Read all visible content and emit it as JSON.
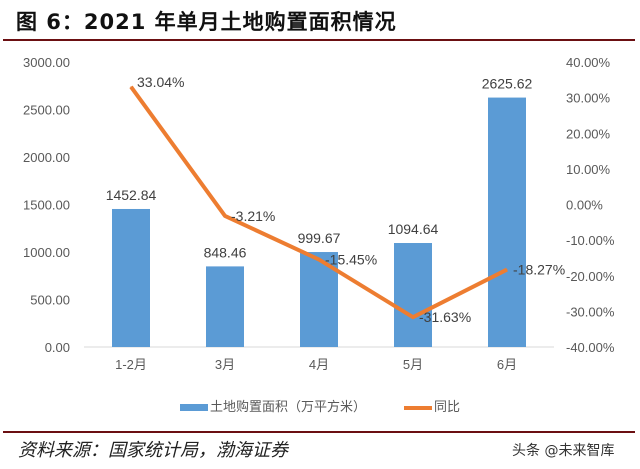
{
  "title": "图 6：2021 年单月土地购置面积情况",
  "source": "资料来源：国家统计局，渤海证券",
  "watermark": "头条 @未来智库",
  "chart_data": {
    "type": "bar+line",
    "categories": [
      "1-2月",
      "3月",
      "4月",
      "5月",
      "6月"
    ],
    "series": [
      {
        "name": "土地购置面积（万平方米）",
        "type": "bar",
        "axis": "left",
        "color": "#5b9bd5",
        "values": [
          1452.84,
          848.46,
          999.67,
          1094.64,
          2625.62
        ],
        "labels": [
          "1452.84",
          "848.46",
          "999.67",
          "1094.64",
          "2625.62"
        ]
      },
      {
        "name": "同比",
        "type": "line",
        "axis": "right",
        "color": "#ed7d31",
        "values": [
          33.04,
          -3.21,
          -15.45,
          -31.63,
          -18.27
        ],
        "labels": [
          "33.04%",
          "-3.21%",
          "-15.45%",
          "-31.63%",
          "-18.27%"
        ]
      }
    ],
    "left_axis": {
      "ylim": [
        0,
        3000
      ],
      "ticks": [
        "0.00",
        "500.00",
        "1000.00",
        "1500.00",
        "2000.00",
        "2500.00",
        "3000.00"
      ]
    },
    "right_axis": {
      "ylim": [
        -40,
        40
      ],
      "ticks": [
        "-40.00%",
        "-30.00%",
        "-20.00%",
        "-10.00%",
        "0.00%",
        "10.00%",
        "20.00%",
        "30.00%",
        "40.00%"
      ]
    },
    "grid": false,
    "legend": "bottom"
  }
}
